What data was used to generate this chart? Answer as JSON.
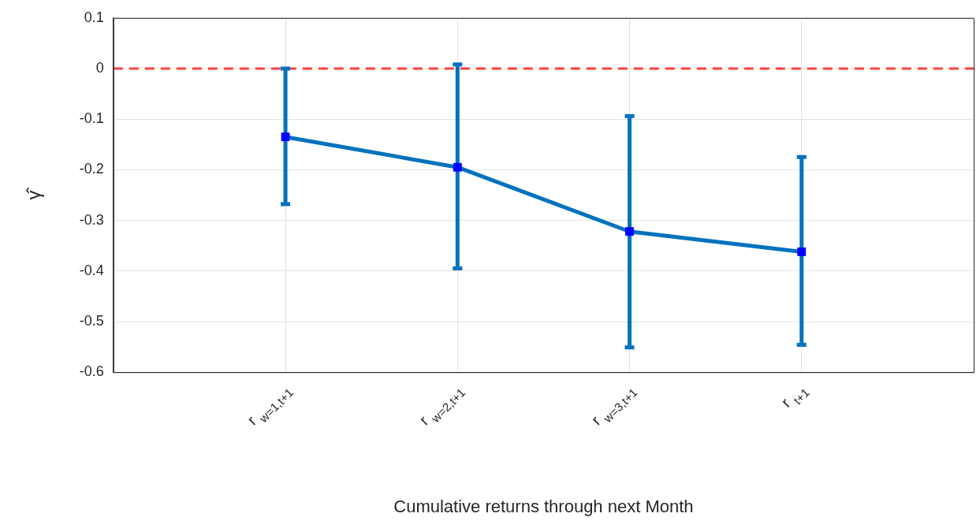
{
  "chart_data": {
    "type": "line",
    "xlabel": "Cumulative returns through next Month",
    "ylabel": "γ̂",
    "categories": [
      "r$_{w=1,t+1}$",
      "r$_{w=2,t+1}$",
      "r$_{w=3,t+1}$",
      "r$_{t+1}$"
    ],
    "series": [
      {
        "color": "#0072bd",
        "values": [
          -0.135,
          -0.195,
          -0.322,
          -0.362
        ],
        "errors": [
          [
            -0.268,
            0.0
          ],
          [
            -0.395,
            0.008
          ],
          [
            -0.551,
            -0.094
          ],
          [
            -0.546,
            -0.175
          ]
        ]
      }
    ],
    "marker": "square",
    "line_style": "solid",
    "ylim": [
      -0.6,
      0.1
    ],
    "yticks": [
      -0.6,
      -0.5,
      -0.4,
      -0.3,
      -0.2,
      -0.1,
      0,
      0.1
    ],
    "grid": true,
    "legend": false,
    "ref_lines": [
      {
        "axis": "y",
        "value": 0,
        "color": "#ff4040",
        "line_style": "dashed"
      }
    ]
  }
}
